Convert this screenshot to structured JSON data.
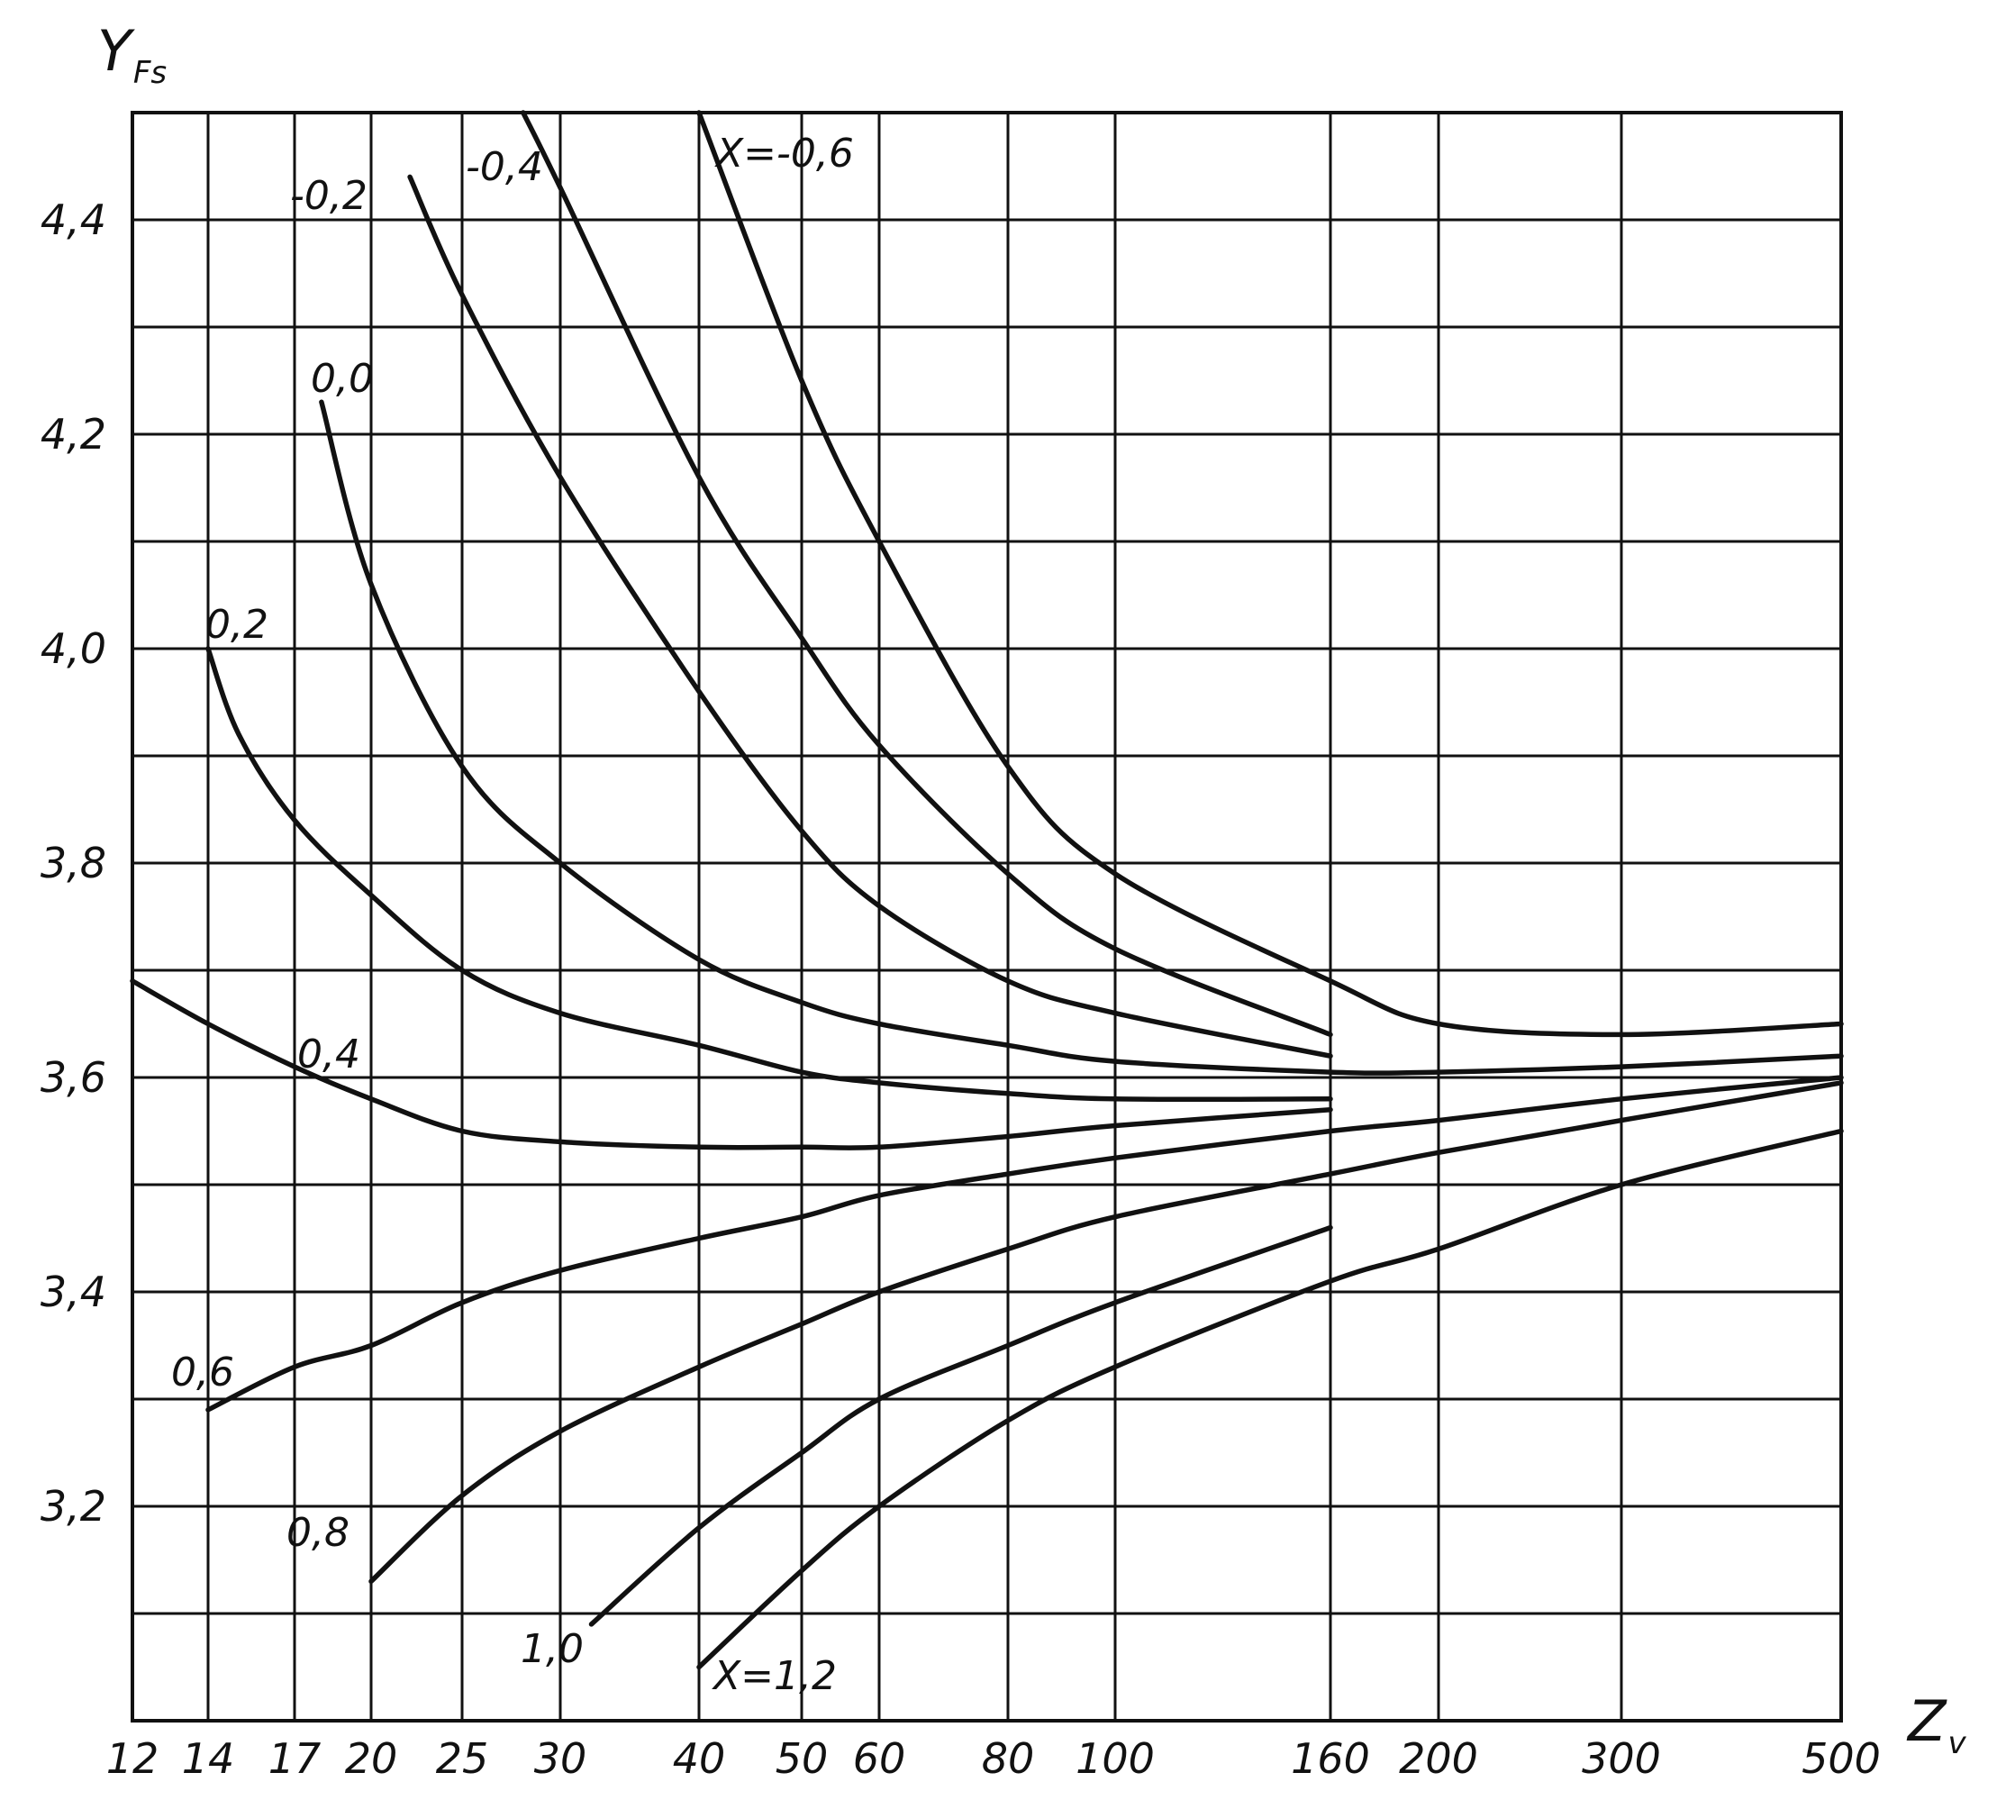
{
  "chart_data": {
    "type": "line",
    "title": "",
    "ylabel": "Y",
    "ylabel_sub": "Fs",
    "xlabel": "Z",
    "xlabel_sub": "v",
    "x_ticks": [
      12,
      14,
      17,
      20,
      25,
      30,
      40,
      50,
      60,
      80,
      100,
      160,
      200,
      300,
      500
    ],
    "x_tick_labels": [
      "12",
      "14",
      "17",
      "20",
      "25",
      "30",
      "40",
      "50",
      "60",
      "80",
      "100",
      "160",
      "200",
      "300",
      "500"
    ],
    "y_ticks": [
      3.2,
      3.4,
      3.6,
      3.8,
      4.0,
      4.2,
      4.4
    ],
    "y_tick_labels": [
      "3,2",
      "3,4",
      "3,6",
      "3,8",
      "4,0",
      "4,2",
      "4,4"
    ],
    "ylim": [
      3.0,
      4.5
    ],
    "grid": true,
    "series": [
      {
        "name": "X=-0,6",
        "x": [
          40,
          50,
          60,
          80,
          100,
          160,
          200,
          300,
          500
        ],
        "y": [
          4.5,
          4.25,
          4.1,
          3.89,
          3.79,
          3.69,
          3.65,
          3.64,
          3.65
        ]
      },
      {
        "name": "-0,4",
        "x": [
          28,
          30,
          40,
          50,
          60,
          80,
          100,
          160
        ],
        "y": [
          4.5,
          4.43,
          4.16,
          4.01,
          3.91,
          3.79,
          3.72,
          3.64
        ]
      },
      {
        "name": "-0,2",
        "x": [
          22,
          25,
          30,
          40,
          50,
          60,
          80,
          100,
          160
        ],
        "y": [
          4.44,
          4.33,
          4.16,
          3.96,
          3.83,
          3.76,
          3.69,
          3.66,
          3.62
        ]
      },
      {
        "name": "0,0",
        "x": [
          18,
          20,
          25,
          30,
          40,
          50,
          60,
          80,
          100,
          160,
          200,
          300,
          500
        ],
        "y": [
          4.23,
          4.06,
          3.89,
          3.8,
          3.71,
          3.67,
          3.65,
          3.63,
          3.615,
          3.605,
          3.605,
          3.61,
          3.62
        ]
      },
      {
        "name": "0,2",
        "x": [
          14,
          15,
          17,
          20,
          25,
          30,
          40,
          50,
          60,
          80,
          100,
          160
        ],
        "y": [
          4.0,
          3.92,
          3.84,
          3.77,
          3.7,
          3.66,
          3.63,
          3.605,
          3.595,
          3.585,
          3.58,
          3.58
        ]
      },
      {
        "name": "0,4",
        "x": [
          12,
          14,
          17,
          20,
          25,
          30,
          40,
          50,
          60,
          80,
          100,
          160
        ],
        "y": [
          3.69,
          3.65,
          3.61,
          3.58,
          3.55,
          3.54,
          3.535,
          3.535,
          3.535,
          3.545,
          3.555,
          3.57
        ]
      },
      {
        "name": "0,6",
        "x": [
          14,
          17,
          20,
          25,
          30,
          40,
          50,
          60,
          80,
          100,
          160,
          200,
          300,
          500
        ],
        "y": [
          3.29,
          3.33,
          3.35,
          3.39,
          3.42,
          3.45,
          3.47,
          3.49,
          3.51,
          3.525,
          3.55,
          3.56,
          3.58,
          3.6
        ]
      },
      {
        "name": "0,8",
        "x": [
          20,
          25,
          30,
          40,
          50,
          60,
          80,
          100,
          160,
          200,
          300,
          500
        ],
        "y": [
          3.13,
          3.21,
          3.27,
          3.33,
          3.37,
          3.4,
          3.44,
          3.47,
          3.51,
          3.53,
          3.56,
          3.595
        ]
      },
      {
        "name": "1,0",
        "x": [
          32,
          40,
          50,
          60,
          80,
          100,
          160
        ],
        "y": [
          3.09,
          3.18,
          3.25,
          3.3,
          3.35,
          3.39,
          3.46
        ]
      },
      {
        "name": "X=1,2",
        "x": [
          40,
          50,
          60,
          80,
          100,
          160,
          200,
          300,
          500
        ],
        "y": [
          3.05,
          3.14,
          3.2,
          3.28,
          3.33,
          3.41,
          3.44,
          3.5,
          3.55
        ]
      }
    ]
  }
}
